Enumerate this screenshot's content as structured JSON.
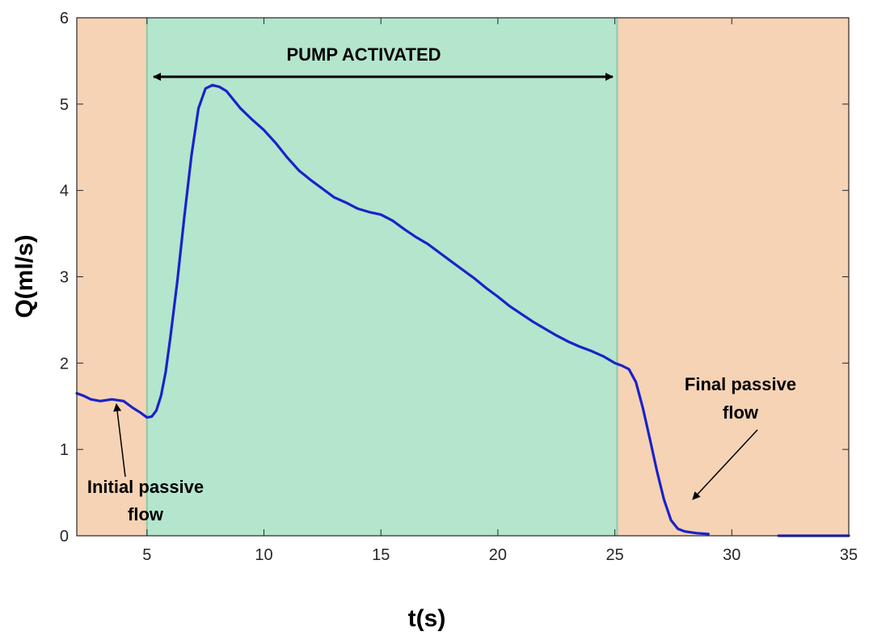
{
  "chart_data": {
    "type": "line",
    "xlabel": "t(s)",
    "ylabel": "Q(ml/s)",
    "xlim": [
      2,
      35
    ],
    "ylim": [
      0,
      6
    ],
    "xticks": [
      5,
      10,
      15,
      20,
      25,
      30,
      35
    ],
    "yticks": [
      0,
      1,
      2,
      3,
      4,
      5,
      6
    ],
    "grid": false,
    "regions": [
      {
        "label": "passive",
        "x": [
          2,
          5
        ],
        "color": "#f6d3b5"
      },
      {
        "label": "pump",
        "x": [
          5,
          25.1
        ],
        "color": "#b4e5cd"
      },
      {
        "label": "passive",
        "x": [
          25.1,
          35
        ],
        "color": "#f6d3b5"
      }
    ],
    "region_edge_color": "#8fc9a8",
    "series": [
      {
        "color": "#1a22c8",
        "x": [
          2.0,
          2.3,
          2.6,
          3.0,
          3.5,
          4.0,
          4.4,
          4.7,
          5.0,
          5.2,
          5.4,
          5.6,
          5.8,
          6.0,
          6.3,
          6.6,
          6.9,
          7.2,
          7.5,
          7.8,
          8.1,
          8.4,
          8.7,
          9.0,
          9.5,
          10.0,
          10.5,
          11.0,
          11.5,
          12.0,
          12.5,
          13.0,
          13.5,
          14.0,
          14.5,
          15.0,
          15.5,
          16.0,
          16.5,
          17.0,
          17.5,
          18.0,
          18.5,
          19.0,
          19.5,
          20.0,
          20.5,
          21.0,
          21.5,
          22.0,
          22.5,
          23.0,
          23.5,
          24.0,
          24.5,
          25.0,
          25.3,
          25.6,
          25.9,
          26.2,
          26.5,
          26.8,
          27.1,
          27.4,
          27.7,
          28.0,
          28.5,
          29.0
        ],
        "y": [
          1.65,
          1.62,
          1.58,
          1.56,
          1.58,
          1.56,
          1.48,
          1.43,
          1.37,
          1.38,
          1.45,
          1.62,
          1.9,
          2.3,
          2.95,
          3.7,
          4.4,
          4.95,
          5.18,
          5.22,
          5.2,
          5.15,
          5.05,
          4.95,
          4.82,
          4.7,
          4.55,
          4.38,
          4.23,
          4.12,
          4.02,
          3.92,
          3.86,
          3.79,
          3.75,
          3.72,
          3.65,
          3.55,
          3.46,
          3.38,
          3.28,
          3.18,
          3.08,
          2.98,
          2.87,
          2.77,
          2.66,
          2.57,
          2.48,
          2.4,
          2.32,
          2.25,
          2.19,
          2.14,
          2.08,
          2.0,
          1.97,
          1.93,
          1.78,
          1.48,
          1.12,
          0.75,
          0.42,
          0.18,
          0.08,
          0.05,
          0.03,
          0.02
        ]
      },
      {
        "color": "#1a22c8",
        "x": [
          32.0,
          35.0
        ],
        "y": [
          0.0,
          0.0
        ]
      }
    ],
    "annotations": {
      "pump": "PUMP ACTIVATED",
      "initial_line1": "Initial passive",
      "initial_line2": "flow",
      "final_line1": "Final  passive",
      "final_line2": "flow"
    }
  }
}
